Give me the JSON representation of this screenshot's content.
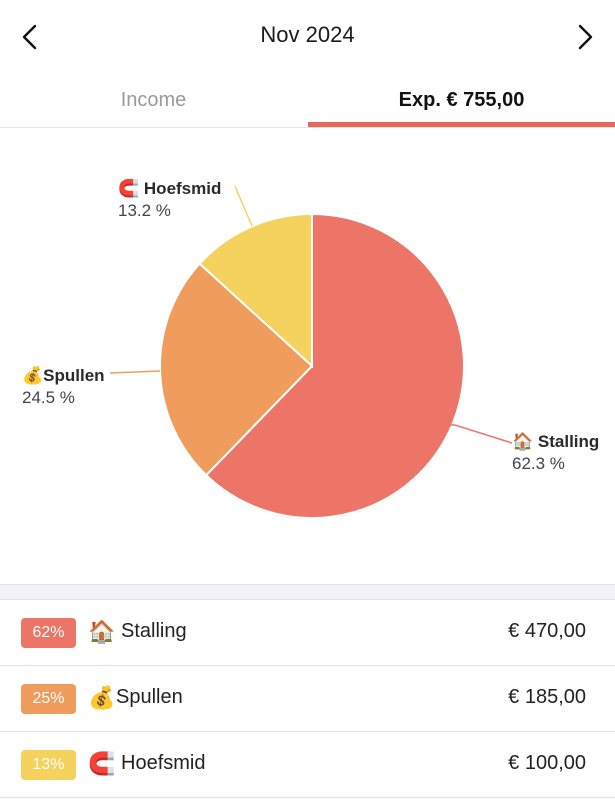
{
  "header": {
    "title": "Nov 2024",
    "prev_icon": "chevron-left-icon",
    "next_icon": "chevron-right-icon"
  },
  "tabs": {
    "income_label": "Income",
    "expense_label": "Exp. € 755,00",
    "active": "expense"
  },
  "chart_data": {
    "type": "pie",
    "slices": [
      {
        "label": "Stalling",
        "emoji": "🏠",
        "percent_label": "62.3 %",
        "value": 470.0,
        "color": "#ec7568"
      },
      {
        "label": "Spullen",
        "emoji": "💰",
        "percent_label": "24.5 %",
        "value": 185.0,
        "color": "#ef9c5c"
      },
      {
        "label": "Hoefsmid",
        "emoji": "🧲",
        "percent_label": "13.2 %",
        "value": 100.0,
        "color": "#f5d25e"
      }
    ]
  },
  "list": {
    "items": [
      {
        "badge": "62%",
        "emoji": "🏠",
        "label": "Stalling",
        "amount": "€ 470,00",
        "color": "#ec7568"
      },
      {
        "badge": "25%",
        "emoji": "💰",
        "label": "Spullen",
        "amount": "€ 185,00",
        "color": "#ef9c5c"
      },
      {
        "badge": "13%",
        "emoji": "🧲",
        "label": "Hoefsmid",
        "amount": "€ 100,00",
        "color": "#f5d25e"
      }
    ]
  }
}
